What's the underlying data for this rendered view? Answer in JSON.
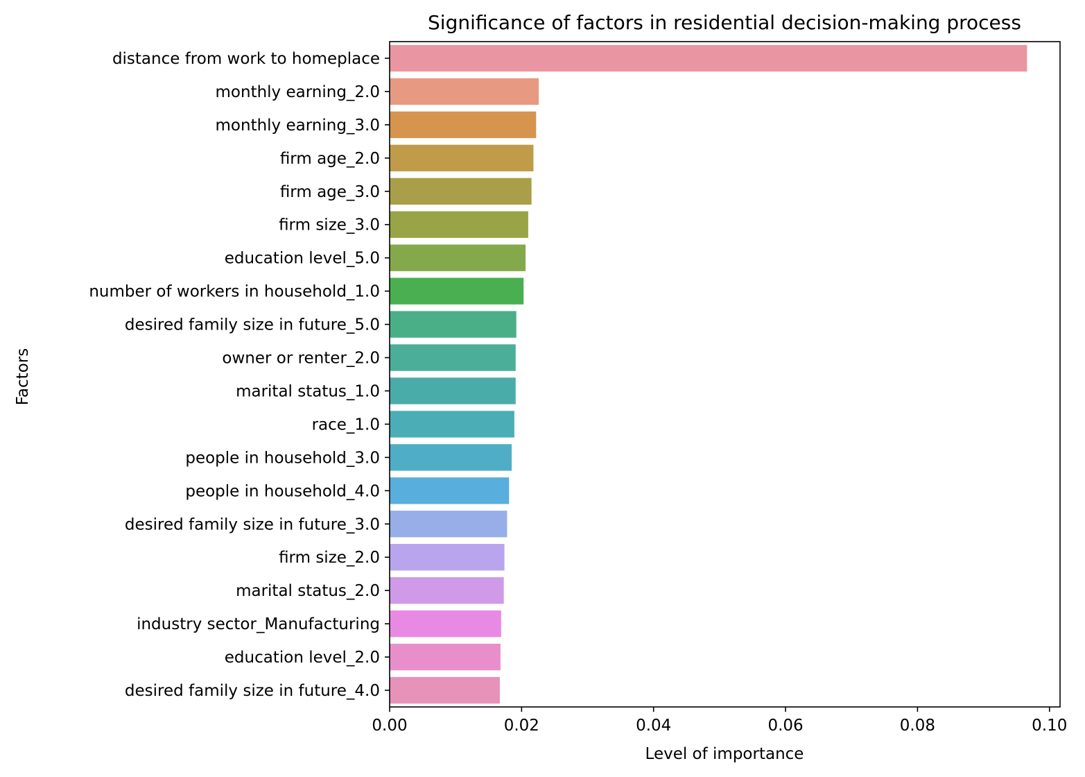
{
  "chart_data": {
    "type": "bar",
    "orientation": "horizontal",
    "title": "Significance of factors in residential decision-making process",
    "xlabel": "Level of importance",
    "ylabel": "Factors",
    "xlim": [
      0,
      0.1016
    ],
    "xticks": [
      0.0,
      0.02,
      0.04,
      0.06,
      0.08,
      0.1
    ],
    "xtick_labels": [
      "0.00",
      "0.02",
      "0.04",
      "0.06",
      "0.08",
      "0.10"
    ],
    "grid": false,
    "legend": "none",
    "categories": [
      "distance from work to homeplace",
      "monthly earning_2.0",
      "monthly earning_3.0",
      "firm age_2.0",
      "firm age_3.0",
      "firm size_3.0",
      "education level_5.0",
      "number of workers in household_1.0",
      "desired family size in future_5.0",
      "owner or renter_2.0",
      "marital status_1.0",
      "race_1.0",
      "people in household_3.0",
      "people in household_4.0",
      "desired family size in future_3.0",
      "firm size_2.0",
      "marital status_2.0",
      "industry sector_Manufacturing",
      "education level_2.0",
      "desired family size in future_4.0"
    ],
    "values": [
      0.0966,
      0.0226,
      0.0222,
      0.0218,
      0.0215,
      0.021,
      0.0206,
      0.0203,
      0.0192,
      0.0191,
      0.0191,
      0.0189,
      0.0185,
      0.0181,
      0.0178,
      0.0174,
      0.0173,
      0.0169,
      0.0168,
      0.0167
    ],
    "colors": [
      "#ea96a2",
      "#e79a81",
      "#d6944f",
      "#bf9b4a",
      "#a89f48",
      "#99a446",
      "#84a94a",
      "#4aaf50",
      "#4aaf87",
      "#4aae98",
      "#4aaca9",
      "#4badb6",
      "#4faec6",
      "#58aedd",
      "#97aee8",
      "#b8a5ee",
      "#cf9ae8",
      "#e88ae4",
      "#e88fcb",
      "#e792b8"
    ]
  }
}
